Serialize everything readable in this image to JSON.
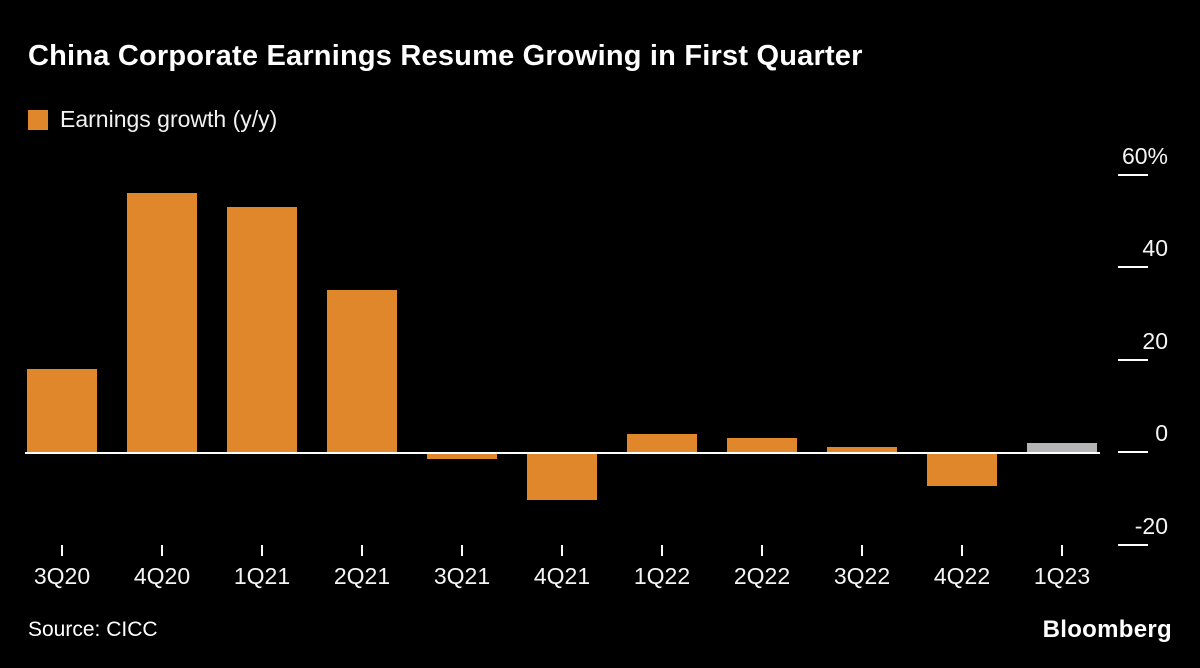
{
  "header": {
    "title": "China Corporate Earnings Resume Growing in First Quarter",
    "legend_label": "Earnings growth (y/y)"
  },
  "footer": {
    "source": "Source: CICC",
    "brand": "Bloomberg"
  },
  "colors": {
    "background": "#000000",
    "bar": "#e0872c",
    "highlight_bar": "#b5b5b8",
    "axis": "#ffffff",
    "text": "#ffffff"
  },
  "chart_data": {
    "type": "bar",
    "title": "China Corporate Earnings Resume Growing in First Quarter",
    "legend": [
      "Earnings growth (y/y)"
    ],
    "xlabel": "",
    "ylabel": "Earnings growth (y/y), %",
    "categories": [
      "3Q20",
      "4Q20",
      "1Q21",
      "2Q21",
      "3Q21",
      "4Q21",
      "1Q22",
      "2Q22",
      "3Q22",
      "4Q22",
      "1Q23"
    ],
    "values": [
      18,
      56,
      53,
      35,
      -1,
      -10,
      4,
      3,
      1,
      -7,
      2
    ],
    "highlight_index": 10,
    "ylim": [
      -25,
      65
    ],
    "axis_side": "right",
    "grid": false,
    "yticks": [
      {
        "value": 60,
        "label": "60%"
      },
      {
        "value": 40,
        "label": "40"
      },
      {
        "value": 20,
        "label": "20"
      },
      {
        "value": 0,
        "label": "0"
      },
      {
        "value": -20,
        "label": "-20"
      }
    ]
  }
}
